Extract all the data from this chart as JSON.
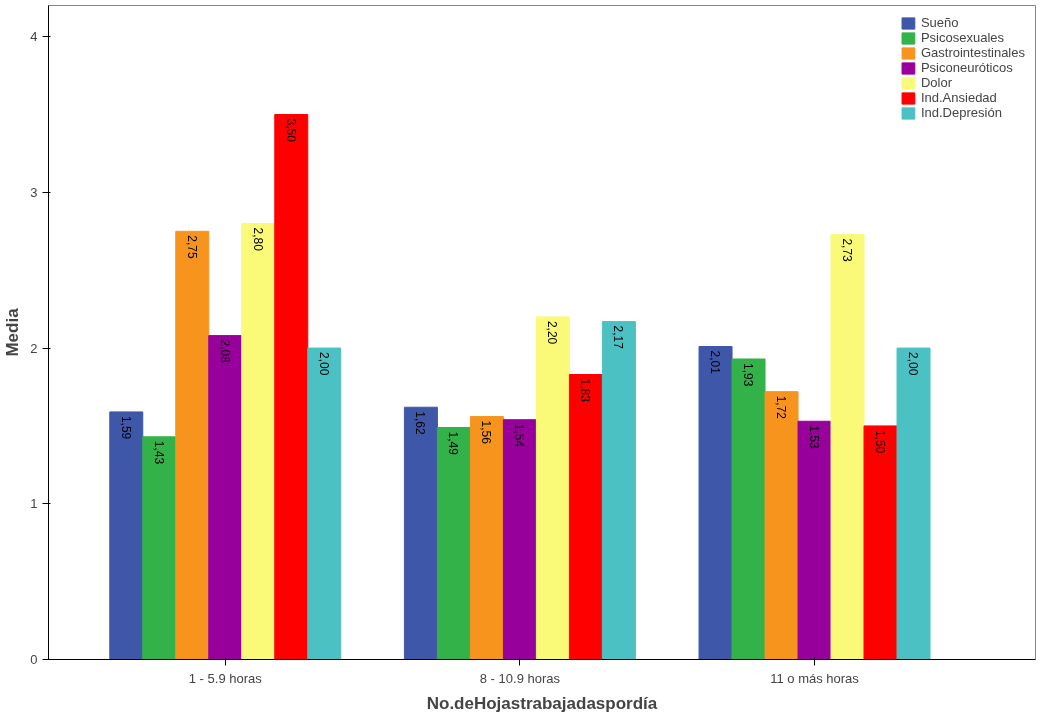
{
  "chart_data": {
    "type": "bar",
    "xlabel": "No.deHojastrabajadaspordía",
    "ylabel": "Media",
    "categories": [
      "1 - 5.9 horas",
      "8 - 10.9 horas",
      "11 o más horas"
    ],
    "series": [
      {
        "name": "Sueño",
        "color": "#3f57a8",
        "values": [
          1.59,
          1.62,
          2.01
        ],
        "value_labels": [
          "1,59",
          "1,62",
          "2,01"
        ]
      },
      {
        "name": "Psicosexuales",
        "color": "#33b24a",
        "values": [
          1.43,
          1.49,
          1.93
        ],
        "value_labels": [
          "1,43",
          "1,49",
          "1,93"
        ]
      },
      {
        "name": "Gastrointestinales",
        "color": "#f7941d",
        "values": [
          2.75,
          1.56,
          1.72
        ],
        "value_labels": [
          "2,75",
          "1,56",
          "1,72"
        ]
      },
      {
        "name": "Psiconeuróticos",
        "color": "#97009a",
        "values": [
          2.08,
          1.54,
          1.53
        ],
        "value_labels": [
          "2,08",
          "1,54",
          "1,53"
        ]
      },
      {
        "name": "Dolor",
        "color": "#fafa78",
        "values": [
          2.8,
          2.2,
          2.73
        ],
        "value_labels": [
          "2,80",
          "2,20",
          "2,73"
        ]
      },
      {
        "name": "Ind.Ansiedad",
        "color": "#ff0000",
        "values": [
          3.5,
          1.83,
          1.5
        ],
        "value_labels": [
          "3,50",
          "1,83",
          "1,50"
        ]
      },
      {
        "name": "Ind.Depresión",
        "color": "#4bc1c4",
        "values": [
          2.0,
          2.17,
          2.0
        ],
        "value_labels": [
          "2,00",
          "2,17",
          "2,00"
        ]
      }
    ],
    "ylim": [
      0,
      4.2
    ],
    "yticks": [
      0,
      1,
      2,
      3,
      4
    ],
    "grid": false,
    "legend": "top right"
  }
}
